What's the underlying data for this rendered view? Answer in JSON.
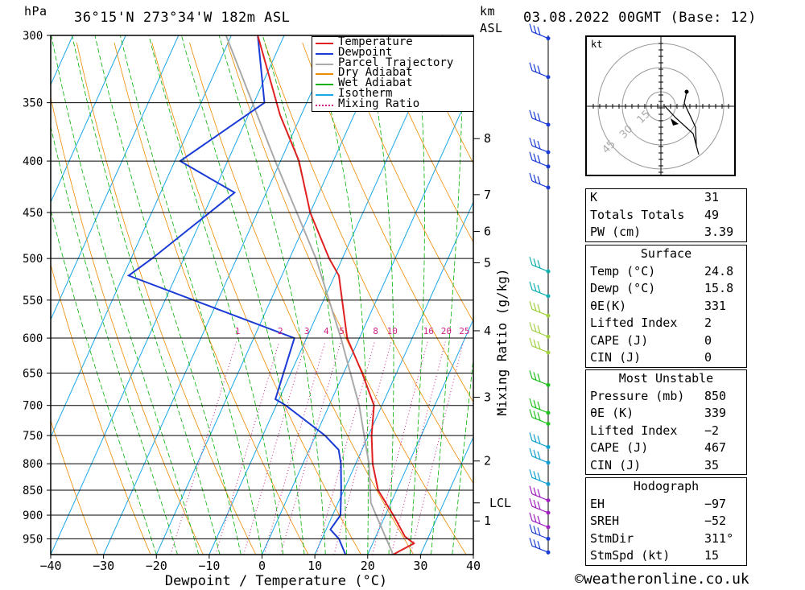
{
  "header": {
    "hpa_unit": "hPa",
    "location": "36°15'N  273°34'W  182m  ASL",
    "km_unit": "km",
    "asl_unit": "ASL",
    "datetime": "03.08.2022  00GMT  (Base: 12)"
  },
  "chart_data": {
    "type": "skew-t",
    "xlabel": "Dewpoint / Temperature (°C)",
    "ylabel_right": "Mixing Ratio (g/kg)",
    "x_ticks": [
      -40,
      -30,
      -20,
      -10,
      0,
      10,
      20,
      30,
      40
    ],
    "x_tick_labels": [
      "−40",
      "−30",
      "−20",
      "−10",
      "0",
      "10",
      "20",
      "30",
      "40"
    ],
    "xlim": [
      -40,
      40
    ],
    "pressure_levels": [
      300,
      350,
      400,
      450,
      500,
      550,
      600,
      650,
      700,
      750,
      800,
      850,
      900,
      950
    ],
    "ylim_hpa": [
      985,
      300
    ],
    "height_ticks_km": [
      1,
      2,
      3,
      4,
      5,
      6,
      7,
      8
    ],
    "height_ticks_p": [
      912,
      795,
      687,
      590,
      505,
      470,
      432,
      380
    ],
    "lcl_label": "LCL",
    "lcl_p": 875,
    "mixing_ratio_labels": [
      "1",
      "2",
      "3",
      "4",
      "5",
      "8",
      "10",
      "16",
      "20",
      "25"
    ],
    "mixing_ratio_values": [
      1,
      2,
      3,
      4,
      5,
      8,
      10,
      16,
      20,
      25
    ],
    "legend": {
      "placement": "top-right",
      "entries": [
        {
          "label": "Temperature",
          "color": "#e02020",
          "style": "solid"
        },
        {
          "label": "Dewpoint",
          "color": "#1a3bd6",
          "style": "solid"
        },
        {
          "label": "Parcel Trajectory",
          "color": "#aaaaaa",
          "style": "solid"
        },
        {
          "label": "Dry Adiabat",
          "color": "#ee8a00",
          "style": "solid"
        },
        {
          "label": "Wet Adiabat",
          "color": "#00b000",
          "style": "solid"
        },
        {
          "label": "Isotherm",
          "color": "#1aa7e6",
          "style": "solid"
        },
        {
          "label": "Mixing Ratio",
          "color": "#d0208a",
          "style": "dotted"
        }
      ]
    },
    "temperature": [
      [
        985,
        24.8
      ],
      [
        960,
        27.8
      ],
      [
        945,
        25.5
      ],
      [
        900,
        21.5
      ],
      [
        850,
        16.5
      ],
      [
        800,
        13.2
      ],
      [
        750,
        10.6
      ],
      [
        700,
        8.5
      ],
      [
        650,
        3.5
      ],
      [
        600,
        -2.3
      ],
      [
        550,
        -6.5
      ],
      [
        520,
        -9.2
      ],
      [
        500,
        -12.5
      ],
      [
        450,
        -20
      ],
      [
        400,
        -26.5
      ],
      [
        360,
        -34
      ],
      [
        300,
        -45
      ]
    ],
    "dewpoint": [
      [
        985,
        15.8
      ],
      [
        950,
        13.2
      ],
      [
        930,
        10.8
      ],
      [
        900,
        11.5
      ],
      [
        850,
        9.5
      ],
      [
        800,
        7.2
      ],
      [
        775,
        5.6
      ],
      [
        750,
        1.8
      ],
      [
        700,
        -8.2
      ],
      [
        690,
        -10.7
      ],
      [
        600,
        -12.3
      ],
      [
        520,
        -49
      ],
      [
        500,
        -46
      ],
      [
        430,
        -36
      ],
      [
        400,
        -49
      ],
      [
        350,
        -38
      ],
      [
        300,
        -45
      ]
    ],
    "parcel": [
      [
        985,
        24.8
      ],
      [
        875,
        16.2
      ],
      [
        800,
        12.5
      ],
      [
        700,
        5.7
      ],
      [
        600,
        -3.5
      ],
      [
        500,
        -15
      ],
      [
        400,
        -31
      ],
      [
        300,
        -51
      ]
    ],
    "wind_barb_pressures": [
      302,
      330,
      368,
      392,
      405,
      425,
      515,
      545,
      570,
      598,
      620,
      668,
      712,
      730,
      770,
      798,
      838,
      870,
      895,
      925,
      950,
      980
    ]
  },
  "hodograph": {
    "unit": "kt",
    "ring_labels": [
      "15",
      "30",
      "45"
    ]
  },
  "indices": [
    {
      "label": "K",
      "value": "31"
    },
    {
      "label": "Totals Totals",
      "value": "49"
    },
    {
      "label": "PW (cm)",
      "value": "3.39"
    }
  ],
  "surface": {
    "title": "Surface",
    "rows": [
      {
        "label": "Temp (°C)",
        "value": "24.8"
      },
      {
        "label": "Dewp (°C)",
        "value": "15.8"
      },
      {
        "label": "θE(K)",
        "value": "331"
      },
      {
        "label": "Lifted Index",
        "value": "2"
      },
      {
        "label": "CAPE (J)",
        "value": "0"
      },
      {
        "label": "CIN (J)",
        "value": "0"
      }
    ]
  },
  "most_unstable": {
    "title": "Most Unstable",
    "rows": [
      {
        "label": "Pressure (mb)",
        "value": "850"
      },
      {
        "label": "θE (K)",
        "value": "339"
      },
      {
        "label": "Lifted Index",
        "value": "−2"
      },
      {
        "label": "CAPE (J)",
        "value": "467"
      },
      {
        "label": "CIN (J)",
        "value": "35"
      }
    ]
  },
  "hodograph_table": {
    "title": "Hodograph",
    "rows": [
      {
        "label": "EH",
        "value": "−97"
      },
      {
        "label": "SREH",
        "value": "−52"
      },
      {
        "label": "StmDir",
        "value": "311°"
      },
      {
        "label": "StmSpd (kt)",
        "value": "15"
      }
    ]
  },
  "credit": "©weatheronline.co.uk"
}
